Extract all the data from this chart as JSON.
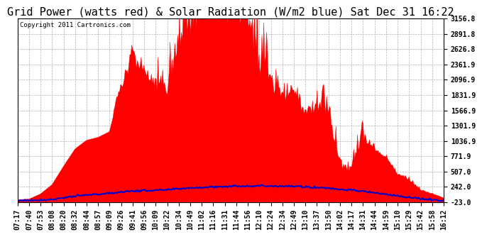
{
  "title": "Grid Power (watts red) & Solar Radiation (W/m2 blue) Sat Dec 31 16:22",
  "copyright": "Copyright 2011 Cartronics.com",
  "ylabel_right": [
    "-23.0",
    "242.0",
    "507.0",
    "771.9",
    "1036.9",
    "1301.9",
    "1566.9",
    "1831.9",
    "2096.9",
    "2361.9",
    "2626.8",
    "2891.8",
    "3156.8"
  ],
  "ymin": -23.0,
  "ymax": 3156.8,
  "yticks": [
    -23.0,
    242.0,
    507.0,
    771.9,
    1036.9,
    1301.9,
    1566.9,
    1831.9,
    2096.9,
    2361.9,
    2626.8,
    2891.8,
    3156.8
  ],
  "background_color": "#ffffff",
  "grid_color": "#aaaaaa",
  "red_color": "#ff0000",
  "blue_color": "#0000cc",
  "title_fontsize": 11,
  "tick_fontsize": 7,
  "time_labels": [
    "07:17",
    "07:40",
    "07:53",
    "08:08",
    "08:20",
    "08:32",
    "08:44",
    "08:57",
    "09:09",
    "09:26",
    "09:41",
    "09:56",
    "10:09",
    "10:22",
    "10:34",
    "10:49",
    "11:02",
    "11:16",
    "11:31",
    "11:44",
    "11:56",
    "12:10",
    "12:24",
    "12:34",
    "12:49",
    "13:10",
    "13:37",
    "13:50",
    "14:02",
    "14:17",
    "14:31",
    "14:44",
    "14:59",
    "15:10",
    "15:29",
    "15:42",
    "15:58",
    "16:12"
  ],
  "red_vals": [
    20,
    30,
    120,
    280,
    600,
    900,
    1050,
    1100,
    1200,
    1900,
    2350,
    2200,
    1900,
    1800,
    2600,
    2850,
    3000,
    3156,
    3100,
    3050,
    2950,
    2100,
    1800,
    1750,
    1650,
    1450,
    1550,
    1400,
    550,
    500,
    1050,
    850,
    750,
    450,
    350,
    180,
    120,
    50
  ],
  "red_spikes": [
    0,
    0,
    0,
    0,
    0,
    0,
    0,
    0,
    0,
    200,
    300,
    100,
    200,
    300,
    500,
    400,
    500,
    0,
    200,
    300,
    400,
    500,
    300,
    200,
    300,
    200,
    400,
    300,
    200,
    200,
    400,
    200,
    100,
    100,
    100,
    50,
    30,
    0
  ],
  "blue_vals": [
    5,
    8,
    15,
    25,
    55,
    80,
    100,
    115,
    130,
    155,
    170,
    178,
    182,
    188,
    210,
    225,
    232,
    242,
    248,
    255,
    258,
    260,
    258,
    255,
    250,
    242,
    230,
    222,
    200,
    185,
    165,
    140,
    110,
    88,
    58,
    35,
    18,
    8
  ]
}
